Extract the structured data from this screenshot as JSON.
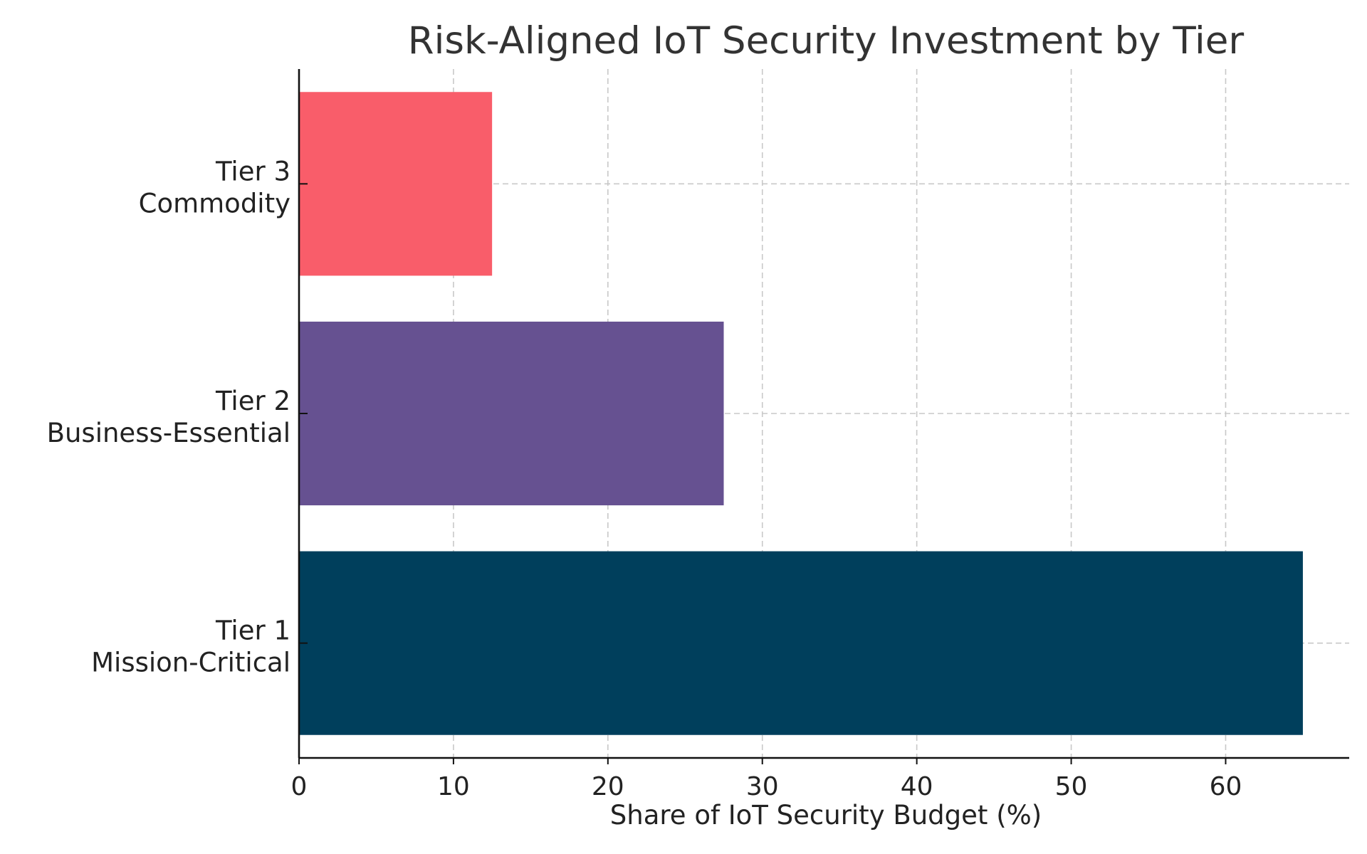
{
  "chart_data": {
    "type": "bar",
    "orientation": "horizontal",
    "title": "Risk-Aligned IoT Security Investment by Tier",
    "xlabel": "Share of IoT Security Budget (%)",
    "ylabel": "",
    "xlim": [
      0,
      68
    ],
    "xticks": [
      0,
      10,
      20,
      30,
      40,
      50,
      60
    ],
    "grid": true,
    "categories": [
      {
        "line1": "Tier 1",
        "line2": "Mission-Critical"
      },
      {
        "line1": "Tier 2",
        "line2": "Business-Essential"
      },
      {
        "line1": "Tier 3",
        "line2": "Commodity"
      }
    ],
    "values": [
      65,
      27.5,
      12.5
    ],
    "colors": [
      "#003f5c",
      "#665191",
      "#f95d6a"
    ]
  }
}
